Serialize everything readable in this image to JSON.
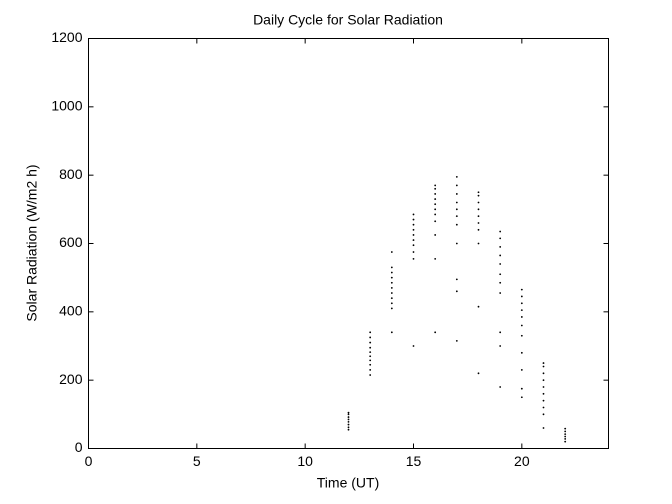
{
  "chart_data": {
    "type": "scatter",
    "title": "Daily Cycle for Solar Radiation",
    "x_label": "Time (UT)",
    "y_label": "Solar Radiation (W/m2 h)",
    "series": [
      {
        "color": "#000000",
        "x": [
          12,
          12,
          12,
          12,
          12,
          12,
          12,
          12,
          13,
          13,
          13,
          13,
          13,
          13,
          13,
          13,
          13,
          13,
          14,
          14,
          14,
          14,
          14,
          14,
          14,
          14,
          14,
          14,
          14,
          15,
          15,
          15,
          15,
          15,
          15,
          15,
          15,
          15,
          15,
          16,
          16,
          16,
          16,
          16,
          16,
          16,
          16,
          16,
          16,
          16,
          17,
          17,
          17,
          17,
          17,
          17,
          17,
          17,
          17,
          17,
          17,
          18,
          18,
          18,
          18,
          18,
          18,
          18,
          18,
          18,
          18,
          19,
          19,
          19,
          19,
          19,
          19,
          19,
          19,
          19,
          19,
          19,
          20,
          20,
          20,
          20,
          20,
          20,
          20,
          20,
          20,
          20,
          20,
          21,
          21,
          21,
          21,
          21,
          21,
          21,
          21,
          21,
          21,
          22,
          22,
          22,
          22,
          22,
          22
        ],
        "values": [
          55,
          62,
          70,
          78,
          85,
          92,
          100,
          105,
          215,
          230,
          245,
          258,
          270,
          282,
          295,
          310,
          325,
          340,
          340,
          410,
          425,
          440,
          455,
          470,
          485,
          500,
          515,
          530,
          575,
          300,
          555,
          575,
          595,
          610,
          625,
          640,
          655,
          670,
          685,
          340,
          555,
          625,
          665,
          685,
          700,
          715,
          730,
          745,
          760,
          770,
          315,
          460,
          495,
          600,
          655,
          680,
          700,
          720,
          745,
          770,
          795,
          220,
          415,
          600,
          640,
          660,
          680,
          700,
          720,
          740,
          750,
          180,
          300,
          340,
          455,
          485,
          510,
          540,
          565,
          590,
          615,
          635,
          150,
          175,
          230,
          280,
          330,
          360,
          385,
          405,
          425,
          445,
          465,
          60,
          100,
          120,
          140,
          160,
          180,
          200,
          220,
          240,
          250,
          20,
          28,
          35,
          42,
          50,
          58
        ]
      }
    ],
    "xlim": [
      0,
      24
    ],
    "xticks": [
      0,
      5,
      10,
      15,
      20
    ],
    "ylim": [
      0,
      1200
    ],
    "yticks": [
      0,
      200,
      400,
      600,
      800,
      1000,
      1200
    ]
  }
}
